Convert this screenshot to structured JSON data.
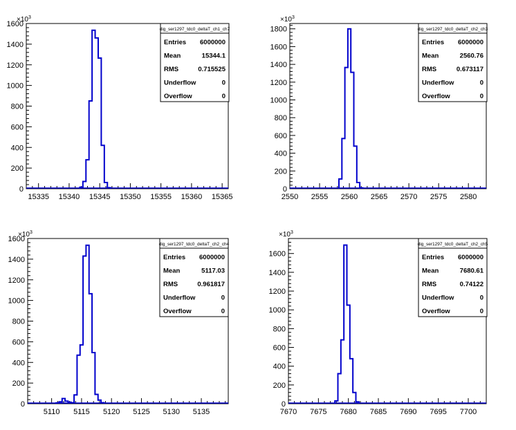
{
  "chart_data": [
    {
      "type": "bar",
      "stats_box": {
        "title": "dig_ser1297_tdc0_deltaT_ch1_ch7",
        "rows": [
          {
            "label": "Entries",
            "value": "6000000"
          },
          {
            "label": "Mean",
            "value": "15344.1"
          },
          {
            "label": "RMS",
            "value": "0.715525"
          },
          {
            "label": "Underflow",
            "value": "0"
          },
          {
            "label": "Overflow",
            "value": "0"
          }
        ]
      },
      "multiplier_label": "×10",
      "multiplier_exp": "3",
      "xlim": [
        15333,
        15366
      ],
      "ylim": [
        0,
        1600
      ],
      "x_ticks": [
        15335,
        15340,
        15345,
        15350,
        15355,
        15360,
        15365
      ],
      "y_ticks": [
        0,
        200,
        400,
        600,
        800,
        1000,
        1200,
        1400,
        1600
      ],
      "bin_width": 0.5,
      "bins": [
        {
          "x": 15342.0,
          "y": 15
        },
        {
          "x": 15342.5,
          "y": 70
        },
        {
          "x": 15343.0,
          "y": 280
        },
        {
          "x": 15343.5,
          "y": 850
        },
        {
          "x": 15344.0,
          "y": 1535
        },
        {
          "x": 15344.5,
          "y": 1460
        },
        {
          "x": 15345.0,
          "y": 1265
        },
        {
          "x": 15345.5,
          "y": 420
        },
        {
          "x": 15346.0,
          "y": 60
        },
        {
          "x": 15346.5,
          "y": 10
        }
      ]
    },
    {
      "type": "bar",
      "stats_box": {
        "title": "dig_ser1297_tdc0_deltaT_ch2_ch3",
        "rows": [
          {
            "label": "Entries",
            "value": "6000000"
          },
          {
            "label": "Mean",
            "value": "2560.76"
          },
          {
            "label": "RMS",
            "value": "0.673117"
          },
          {
            "label": "Underflow",
            "value": "0"
          },
          {
            "label": "Overflow",
            "value": "0"
          }
        ]
      },
      "multiplier_label": "×10",
      "multiplier_exp": "3",
      "xlim": [
        2550,
        2583
      ],
      "ylim": [
        0,
        1860
      ],
      "x_ticks": [
        2550,
        2555,
        2560,
        2565,
        2570,
        2575,
        2580
      ],
      "y_ticks": [
        0,
        200,
        400,
        600,
        800,
        1000,
        1200,
        1400,
        1600,
        1800
      ],
      "bin_width": 0.5,
      "bins": [
        {
          "x": 2558.5,
          "y": 110
        },
        {
          "x": 2559.0,
          "y": 565
        },
        {
          "x": 2559.5,
          "y": 1365
        },
        {
          "x": 2560.0,
          "y": 1800
        },
        {
          "x": 2560.5,
          "y": 1310
        },
        {
          "x": 2561.0,
          "y": 480
        },
        {
          "x": 2561.5,
          "y": 70
        },
        {
          "x": 2562.0,
          "y": 10
        }
      ]
    },
    {
      "type": "bar",
      "stats_box": {
        "title": "dig_ser1297_tdc0_deltaT_ch2_ch4",
        "rows": [
          {
            "label": "Entries",
            "value": "6000000"
          },
          {
            "label": "Mean",
            "value": "5117.03"
          },
          {
            "label": "RMS",
            "value": "0.961817"
          },
          {
            "label": "Underflow",
            "value": "0"
          },
          {
            "label": "Overflow",
            "value": "0"
          }
        ]
      },
      "multiplier_label": "×10",
      "multiplier_exp": "3",
      "xlim": [
        5106,
        5139.5
      ],
      "ylim": [
        0,
        1600
      ],
      "x_ticks": [
        5110,
        5115,
        5120,
        5125,
        5130,
        5135
      ],
      "y_ticks": [
        0,
        200,
        400,
        600,
        800,
        1000,
        1200,
        1400,
        1600
      ],
      "bin_width": 0.5,
      "bins": [
        {
          "x": 5111.0,
          "y": 8
        },
        {
          "x": 5111.5,
          "y": 18
        },
        {
          "x": 5112.0,
          "y": 50
        },
        {
          "x": 5112.5,
          "y": 25
        },
        {
          "x": 5113.0,
          "y": 15
        },
        {
          "x": 5113.5,
          "y": 10
        },
        {
          "x": 5114.0,
          "y": 85
        },
        {
          "x": 5114.5,
          "y": 470
        },
        {
          "x": 5115.0,
          "y": 570
        },
        {
          "x": 5115.5,
          "y": 1430
        },
        {
          "x": 5116.0,
          "y": 1535
        },
        {
          "x": 5116.5,
          "y": 1065
        },
        {
          "x": 5117.0,
          "y": 495
        },
        {
          "x": 5117.5,
          "y": 90
        },
        {
          "x": 5118.0,
          "y": 35
        },
        {
          "x": 5118.5,
          "y": 10
        }
      ]
    },
    {
      "type": "bar",
      "stats_box": {
        "title": "dig_ser1297_tdc0_deltaT_ch2_ch5",
        "rows": [
          {
            "label": "Entries",
            "value": "6000000"
          },
          {
            "label": "Mean",
            "value": "7680.61"
          },
          {
            "label": "RMS",
            "value": "0.74122"
          },
          {
            "label": "Underflow",
            "value": "0"
          },
          {
            "label": "Overflow",
            "value": "0"
          }
        ]
      },
      "multiplier_label": "×10",
      "multiplier_exp": "3",
      "xlim": [
        7670,
        7703
      ],
      "ylim": [
        0,
        1760
      ],
      "x_ticks": [
        7670,
        7675,
        7680,
        7685,
        7690,
        7695,
        7700
      ],
      "y_ticks": [
        0,
        200,
        400,
        600,
        800,
        1000,
        1200,
        1400,
        1600
      ],
      "bin_width": 0.5,
      "bins": [
        {
          "x": 7678.0,
          "y": 30
        },
        {
          "x": 7678.5,
          "y": 320
        },
        {
          "x": 7679.0,
          "y": 680
        },
        {
          "x": 7679.5,
          "y": 1690
        },
        {
          "x": 7680.0,
          "y": 1050
        },
        {
          "x": 7680.5,
          "y": 480
        },
        {
          "x": 7681.0,
          "y": 120
        },
        {
          "x": 7681.5,
          "y": 20
        }
      ]
    }
  ],
  "colors": {
    "histogram_line": "#0000cc",
    "frame": "#000000",
    "background": "#ffffff"
  }
}
